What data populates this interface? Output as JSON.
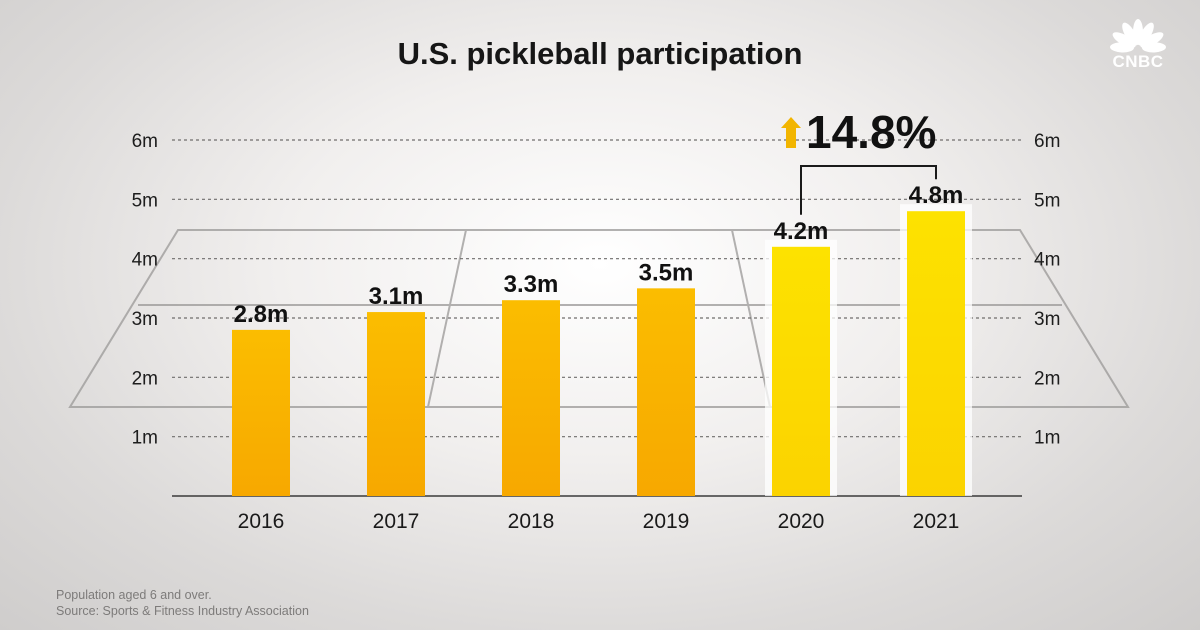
{
  "chart_data": {
    "type": "bar",
    "title": "U.S. pickleball participation",
    "categories": [
      "2016",
      "2017",
      "2018",
      "2019",
      "2020",
      "2021"
    ],
    "values": [
      2.8,
      3.1,
      3.3,
      3.5,
      4.2,
      4.8
    ],
    "data_labels": [
      "2.8m",
      "3.1m",
      "3.3m",
      "3.5m",
      "4.2m",
      "4.8m"
    ],
    "ylim": [
      0,
      6
    ],
    "yticks": [
      1,
      2,
      3,
      4,
      5,
      6
    ],
    "ytick_labels": [
      "1m",
      "2m",
      "3m",
      "4m",
      "5m",
      "6m"
    ],
    "grid": true,
    "highlighted_categories": [
      "2020",
      "2021"
    ],
    "annotation": {
      "text": "14.8%",
      "from": "2020",
      "to": "2021",
      "icon": "up-arrow-icon"
    },
    "colors": {
      "bar": "#fab400",
      "highlight_bar": "#fcdc00",
      "arrow": "#f2b500"
    }
  },
  "footnote": {
    "line1": "Population aged 6 and over.",
    "line2": "Source: Sports & Fitness Industry Association"
  },
  "logo": {
    "text": "CNBC",
    "icon": "peacock-logo-icon"
  }
}
